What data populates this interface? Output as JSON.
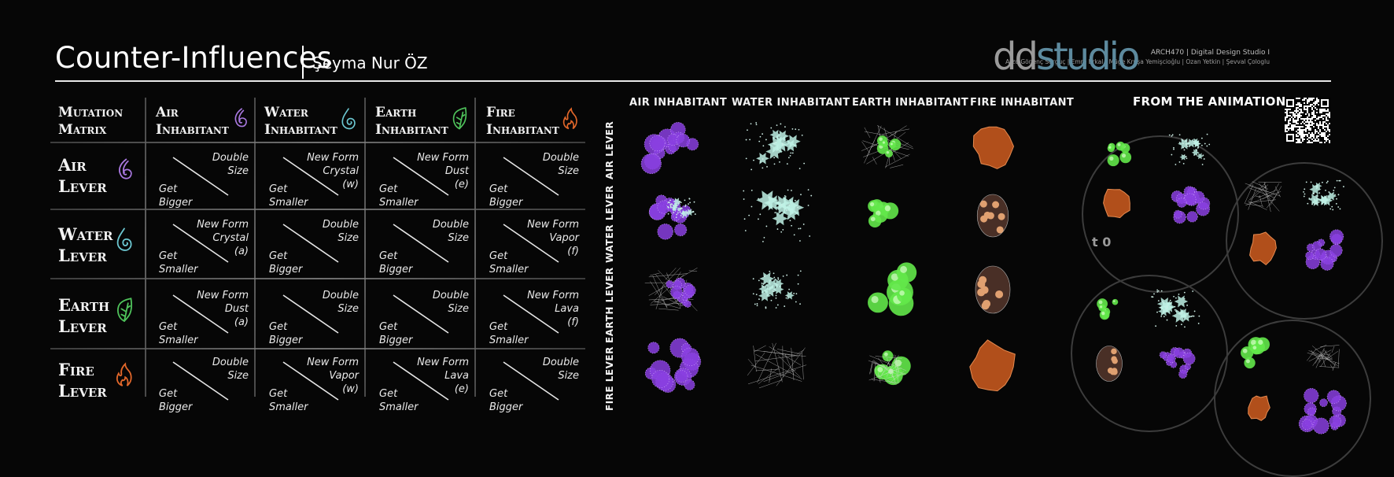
{
  "header": {
    "title": "Counter-Influences",
    "author": "Şeyma Nur ÖZ",
    "course": "ARCH470 | Digital Design Studio I",
    "instructors": "Arzu Gönenç Sorguç | Emre Erkal | Müge Kruşa Yemişcioğlu | Ozan Yetkin | Şevval Çologlu",
    "logo": "ddstudio"
  },
  "matrix": {
    "corner": [
      "Mutation",
      "Matrix"
    ],
    "columns": [
      {
        "line1": "Air",
        "line2": "Inhabitant",
        "icon": "air-swirl-icon",
        "color": "#a978e0"
      },
      {
        "line1": "Water",
        "line2": "Inhabitant",
        "icon": "water-drop-icon",
        "color": "#6cc7d1"
      },
      {
        "line1": "Earth",
        "line2": "Inhabitant",
        "icon": "leaf-icon",
        "color": "#4fc35b"
      },
      {
        "line1": "Fire",
        "line2": "Inhabitant",
        "icon": "flame-icon",
        "color": "#e2672a"
      }
    ],
    "rows": [
      {
        "line1": "Air",
        "line2": "Lever",
        "icon": "air-swirl-icon",
        "color": "#a978e0"
      },
      {
        "line1": "Water",
        "line2": "Lever",
        "icon": "water-drop-icon",
        "color": "#6cc7d1"
      },
      {
        "line1": "Earth",
        "line2": "Lever",
        "icon": "leaf-icon",
        "color": "#4fc35b"
      },
      {
        "line1": "Fire",
        "line2": "Lever",
        "icon": "flame-icon",
        "color": "#e2672a"
      }
    ],
    "cells": [
      [
        {
          "top": "Double\nSize",
          "bottom": "Get\nBigger"
        },
        {
          "top": "New Form\nCrystal\n(w)",
          "bottom": "Get\nSmaller"
        },
        {
          "top": "New Form\nDust\n(e)",
          "bottom": "Get\nSmaller"
        },
        {
          "top": "Double\nSize",
          "bottom": "Get\nBigger"
        }
      ],
      [
        {
          "top": "New Form\nCrystal\n(a)",
          "bottom": "Get\nSmaller"
        },
        {
          "top": "Double\nSize",
          "bottom": "Get\nBigger"
        },
        {
          "top": "Double\nSize",
          "bottom": "Get\nBigger"
        },
        {
          "top": "New Form\nVapor\n(f)",
          "bottom": "Get\nSmaller"
        }
      ],
      [
        {
          "top": "New Form\nDust\n(a)",
          "bottom": "Get\nSmaller"
        },
        {
          "top": "Double\nSize",
          "bottom": "Get\nBigger"
        },
        {
          "top": "Double\nSize",
          "bottom": "Get\nBigger"
        },
        {
          "top": "New Form\nLava\n(f)",
          "bottom": "Get\nSmaller"
        }
      ],
      [
        {
          "top": "Double\nSize",
          "bottom": "Get\nBigger"
        },
        {
          "top": "New Form\nVapor\n(w)",
          "bottom": "Get\nSmaller"
        },
        {
          "top": "New Form\nLava\n(e)",
          "bottom": "Get\nSmaller"
        },
        {
          "top": "Double\nSize",
          "bottom": "Get\nBigger"
        }
      ]
    ]
  },
  "inhabitants": {
    "columns": [
      "AIR INHABITANT",
      "WATER INHABITANT",
      "EARTH INHABITANT",
      "FIRE INHABITANT"
    ],
    "rows": [
      "AIR LEVER",
      "WATER LEVER",
      "EARTH LEVER",
      "FIRE LEVER"
    ],
    "colors": {
      "air": "#8a3fe0",
      "water": "#bff2e6",
      "earth": "#63e84a",
      "fire": "#c4581e"
    }
  },
  "animation": {
    "title": "FROM THE ANIMATION",
    "stage_label": "t 0"
  }
}
